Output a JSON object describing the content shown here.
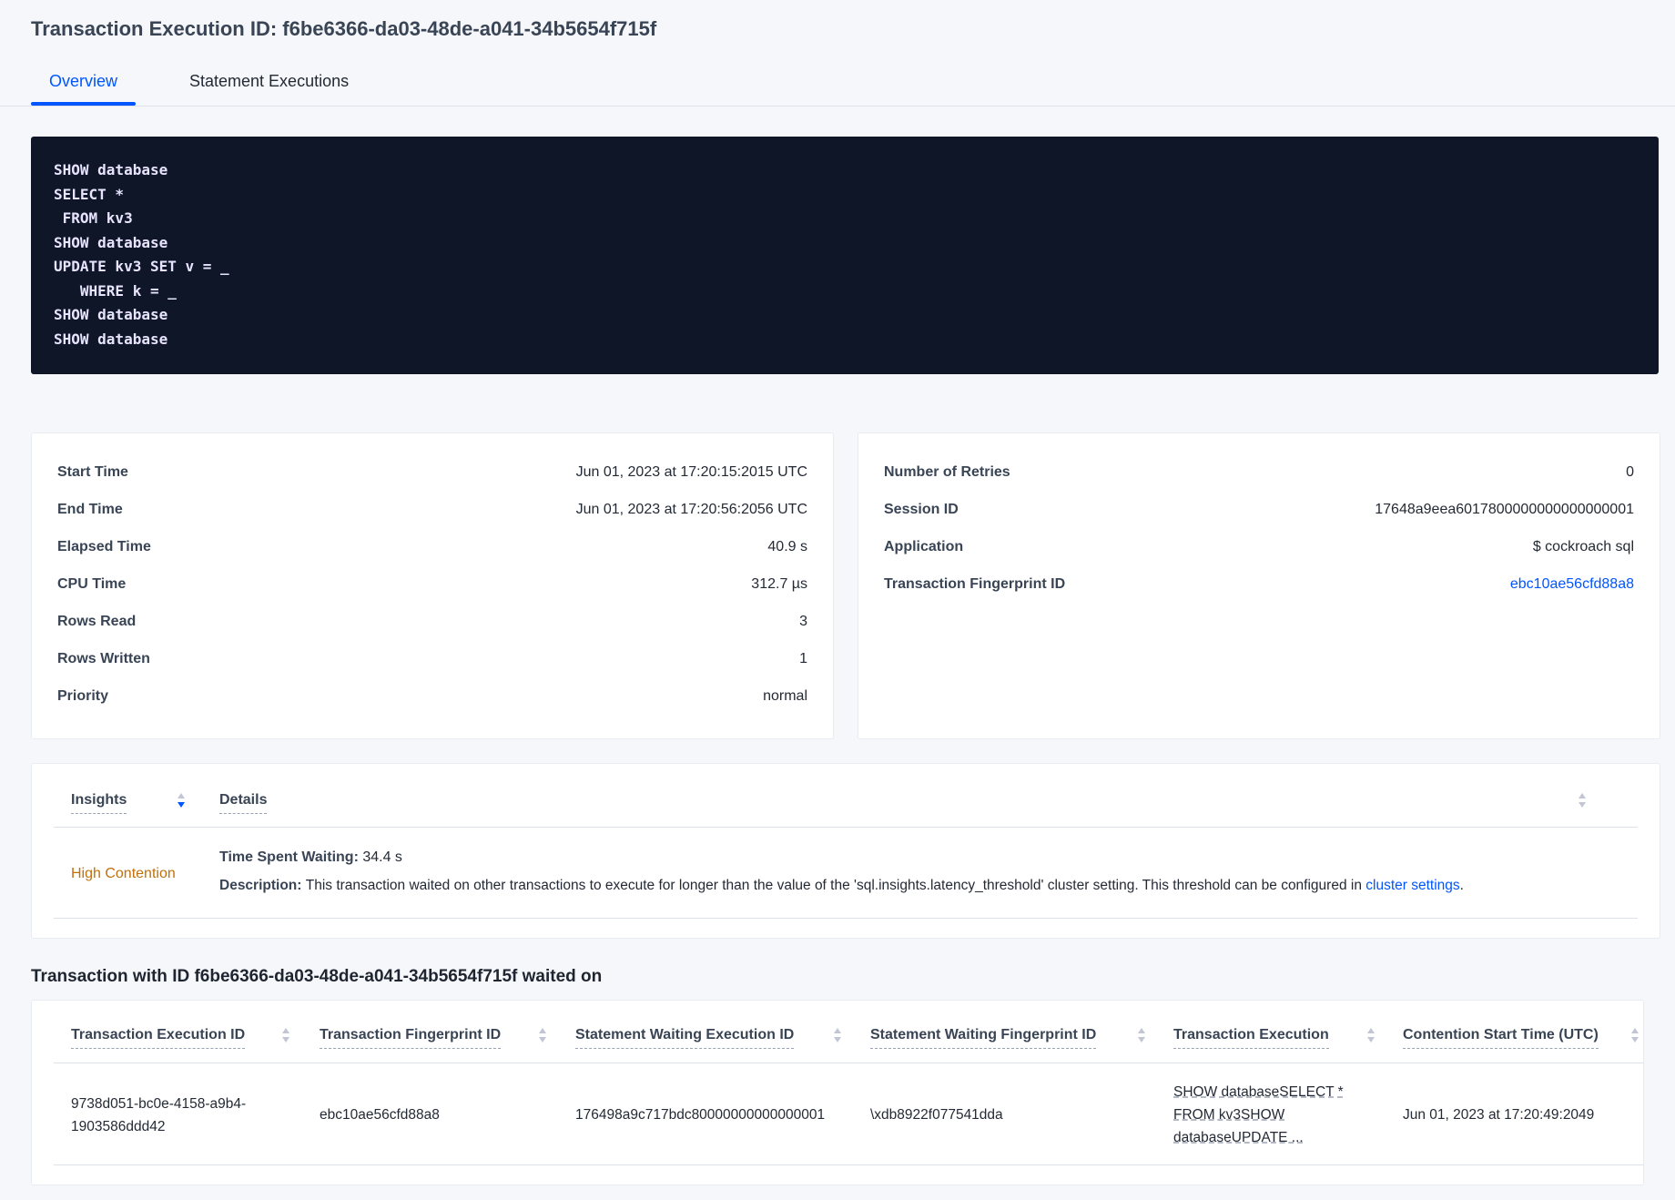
{
  "header": {
    "title": "Transaction Execution ID: f6be6366-da03-48de-a041-34b5654f715f"
  },
  "tabs": [
    "Overview",
    "Statement Executions"
  ],
  "code": {
    "lines": [
      "SHOW database",
      "SELECT *",
      " FROM kv3",
      "SHOW database",
      "UPDATE kv3 SET v = _",
      "   WHERE k = _",
      "SHOW database",
      "SHOW database"
    ]
  },
  "summary_left": {
    "rows": [
      {
        "label": "Start Time",
        "value": "Jun 01, 2023 at 17:20:15:2015 UTC"
      },
      {
        "label": "End Time",
        "value": "Jun 01, 2023 at 17:20:56:2056 UTC"
      },
      {
        "label": "Elapsed Time",
        "value": "40.9 s"
      },
      {
        "label": "CPU Time",
        "value": "312.7 µs"
      },
      {
        "label": "Rows Read",
        "value": "3"
      },
      {
        "label": "Rows Written",
        "value": "1"
      },
      {
        "label": "Priority",
        "value": "normal"
      }
    ]
  },
  "summary_right": {
    "rows": [
      {
        "label": "Number of Retries",
        "value": "0"
      },
      {
        "label": "Session ID",
        "value": "17648a9eea6017800000000000000001"
      },
      {
        "label": "Application",
        "value": "$ cockroach sql"
      },
      {
        "label": "Transaction Fingerprint ID",
        "value": "ebc10ae56cfd88a8"
      }
    ]
  },
  "insights": {
    "columns": [
      "Insights",
      "Details"
    ],
    "row": {
      "insight": "High Contention",
      "waiting_label": "Time Spent Waiting:",
      "waiting_value": "34.4 s",
      "description_label": "Description:",
      "description_text": "This transaction waited on other transactions to execute for longer than the value of the 'sql.insights.latency_threshold' cluster setting. This threshold can be configured in",
      "description_link": "cluster settings",
      "description_end": "."
    }
  },
  "waited_on": {
    "title": "Transaction with ID f6be6366-da03-48de-a041-34b5654f715f waited on",
    "columns": [
      "Transaction Execution ID",
      "Transaction Fingerprint ID",
      "Statement Waiting Execution ID",
      "Statement Waiting Fingerprint ID",
      "Transaction Execution",
      "Contention Start Time (UTC)"
    ],
    "rows": [
      [
        "9738d051-bc0e-4158-a9b4-1903586ddd42",
        "ebc10ae56cfd88a8",
        "176498a9c717bdc80000000000000001",
        "\\xdb8922f077541dda",
        "SHOW databaseSELECT * FROM kv3SHOW databaseUPDATE ...",
        "Jun 01, 2023 at 17:20:49:2049"
      ]
    ]
  }
}
